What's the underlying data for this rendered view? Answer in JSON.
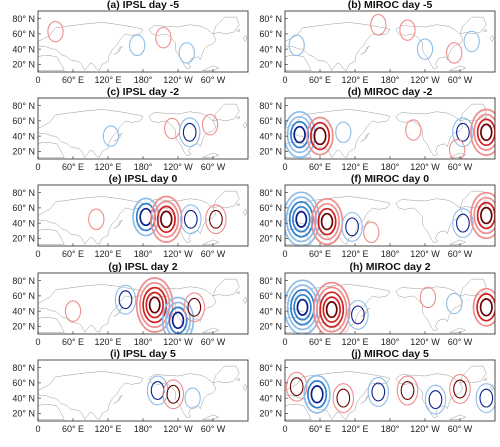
{
  "figure": {
    "colors": {
      "negative_light": "#8fbde8",
      "negative_mid": "#2f7fd1",
      "negative_dark": "#0a1e8a",
      "positive_light": "#f08c8c",
      "positive_mid": "#d11f1f",
      "positive_dark": "#6b0000",
      "coast": "#9a9a9a",
      "frame": "#222222"
    },
    "lat_ticks": [
      "20° N",
      "40° N",
      "60° N",
      "80° N"
    ],
    "lon_ticks": [
      "0",
      "60° E",
      "120° E",
      "180°",
      "120° W",
      "60° W"
    ]
  },
  "chart_data": [
    {
      "type": "contour_map",
      "title": "(a) IPSL day -5",
      "model": "IPSL",
      "day": -5,
      "lon_range": [
        0,
        360
      ],
      "lat_range": [
        10,
        90
      ],
      "anomalies": [
        {
          "lon": 30,
          "lat": 63,
          "sign": "positive",
          "strength": 1
        },
        {
          "lon": 215,
          "lat": 55,
          "sign": "positive",
          "strength": 1
        },
        {
          "lon": 170,
          "lat": 45,
          "sign": "negative",
          "strength": 1
        },
        {
          "lon": 255,
          "lat": 35,
          "sign": "negative",
          "strength": 1
        }
      ]
    },
    {
      "type": "contour_map",
      "title": "(b) MIROC day -5",
      "model": "MIROC",
      "day": -5,
      "lon_range": [
        0,
        360
      ],
      "lat_range": [
        10,
        90
      ],
      "anomalies": [
        {
          "lon": 20,
          "lat": 45,
          "sign": "negative",
          "strength": 1
        },
        {
          "lon": 160,
          "lat": 72,
          "sign": "positive",
          "strength": 1
        },
        {
          "lon": 210,
          "lat": 65,
          "sign": "positive",
          "strength": 1
        },
        {
          "lon": 240,
          "lat": 40,
          "sign": "negative",
          "strength": 1
        },
        {
          "lon": 290,
          "lat": 35,
          "sign": "positive",
          "strength": 1
        },
        {
          "lon": 320,
          "lat": 50,
          "sign": "negative",
          "strength": 1
        }
      ]
    },
    {
      "type": "contour_map",
      "title": "(c) IPSL day -2",
      "model": "IPSL",
      "day": -2,
      "lon_range": [
        0,
        360
      ],
      "lat_range": [
        10,
        90
      ],
      "anomalies": [
        {
          "lon": 125,
          "lat": 40,
          "sign": "negative",
          "strength": 1
        },
        {
          "lon": 230,
          "lat": 50,
          "sign": "positive",
          "strength": 1
        },
        {
          "lon": 260,
          "lat": 45,
          "sign": "negative",
          "strength": 2
        },
        {
          "lon": 295,
          "lat": 55,
          "sign": "positive",
          "strength": 1
        }
      ]
    },
    {
      "type": "contour_map",
      "title": "(d) MIROC day -2",
      "model": "MIROC",
      "day": -2,
      "lon_range": [
        0,
        360
      ],
      "lat_range": [
        10,
        90
      ],
      "anomalies": [
        {
          "lon": 25,
          "lat": 42,
          "sign": "negative",
          "strength": 4
        },
        {
          "lon": 60,
          "lat": 40,
          "sign": "positive",
          "strength": 3
        },
        {
          "lon": 100,
          "lat": 45,
          "sign": "negative",
          "strength": 1
        },
        {
          "lon": 220,
          "lat": 48,
          "sign": "positive",
          "strength": 1
        },
        {
          "lon": 305,
          "lat": 45,
          "sign": "negative",
          "strength": 2
        },
        {
          "lon": 345,
          "lat": 45,
          "sign": "positive",
          "strength": 4
        },
        {
          "lon": 295,
          "lat": 22,
          "sign": "positive",
          "strength": 1
        }
      ]
    },
    {
      "type": "contour_map",
      "title": "(e) IPSL day 0",
      "model": "IPSL",
      "day": 0,
      "lon_range": [
        0,
        360
      ],
      "lat_range": [
        10,
        90
      ],
      "anomalies": [
        {
          "lon": 100,
          "lat": 45,
          "sign": "positive",
          "strength": 1
        },
        {
          "lon": 185,
          "lat": 48,
          "sign": "negative",
          "strength": 3
        },
        {
          "lon": 220,
          "lat": 45,
          "sign": "positive",
          "strength": 4
        },
        {
          "lon": 262,
          "lat": 45,
          "sign": "negative",
          "strength": 2
        },
        {
          "lon": 305,
          "lat": 45,
          "sign": "positive",
          "strength": 2
        }
      ]
    },
    {
      "type": "contour_map",
      "title": "(f) MIROC day 0",
      "model": "MIROC",
      "day": 0,
      "lon_range": [
        0,
        360
      ],
      "lat_range": [
        10,
        90
      ],
      "anomalies": [
        {
          "lon": 28,
          "lat": 45,
          "sign": "negative",
          "strength": 5
        },
        {
          "lon": 72,
          "lat": 42,
          "sign": "positive",
          "strength": 4
        },
        {
          "lon": 115,
          "lat": 35,
          "sign": "negative",
          "strength": 2
        },
        {
          "lon": 148,
          "lat": 28,
          "sign": "positive",
          "strength": 1
        },
        {
          "lon": 305,
          "lat": 40,
          "sign": "negative",
          "strength": 2
        },
        {
          "lon": 345,
          "lat": 50,
          "sign": "positive",
          "strength": 4
        }
      ]
    },
    {
      "type": "contour_map",
      "title": "(g) IPSL day 2",
      "model": "IPSL",
      "day": 2,
      "lon_range": [
        0,
        360
      ],
      "lat_range": [
        10,
        90
      ],
      "anomalies": [
        {
          "lon": 150,
          "lat": 55,
          "sign": "negative",
          "strength": 2
        },
        {
          "lon": 200,
          "lat": 48,
          "sign": "positive",
          "strength": 5
        },
        {
          "lon": 240,
          "lat": 28,
          "sign": "negative",
          "strength": 4
        },
        {
          "lon": 268,
          "lat": 45,
          "sign": "positive",
          "strength": 2
        },
        {
          "lon": 60,
          "lat": 40,
          "sign": "positive",
          "strength": 1
        }
      ]
    },
    {
      "type": "contour_map",
      "title": "(h) MIROC day 2",
      "model": "MIROC",
      "day": 2,
      "lon_range": [
        0,
        360
      ],
      "lat_range": [
        10,
        90
      ],
      "anomalies": [
        {
          "lon": 30,
          "lat": 45,
          "sign": "negative",
          "strength": 5
        },
        {
          "lon": 80,
          "lat": 42,
          "sign": "positive",
          "strength": 5
        },
        {
          "lon": 125,
          "lat": 35,
          "sign": "negative",
          "strength": 2
        },
        {
          "lon": 245,
          "lat": 58,
          "sign": "positive",
          "strength": 1
        },
        {
          "lon": 290,
          "lat": 50,
          "sign": "negative",
          "strength": 1
        },
        {
          "lon": 345,
          "lat": 45,
          "sign": "positive",
          "strength": 3
        }
      ]
    },
    {
      "type": "contour_map",
      "title": "(i) IPSL day 5",
      "model": "IPSL",
      "day": 5,
      "lon_range": [
        0,
        360
      ],
      "lat_range": [
        10,
        90
      ],
      "anomalies": [
        {
          "lon": 205,
          "lat": 50,
          "sign": "negative",
          "strength": 2
        },
        {
          "lon": 232,
          "lat": 45,
          "sign": "positive",
          "strength": 2
        },
        {
          "lon": 265,
          "lat": 40,
          "sign": "negative",
          "strength": 1
        }
      ]
    },
    {
      "type": "contour_map",
      "title": "(j) MIROC day 5",
      "model": "MIROC",
      "day": 5,
      "lon_range": [
        0,
        360
      ],
      "lat_range": [
        10,
        90
      ],
      "anomalies": [
        {
          "lon": 20,
          "lat": 55,
          "sign": "positive",
          "strength": 2
        },
        {
          "lon": 55,
          "lat": 45,
          "sign": "negative",
          "strength": 3
        },
        {
          "lon": 100,
          "lat": 40,
          "sign": "positive",
          "strength": 2
        },
        {
          "lon": 160,
          "lat": 48,
          "sign": "negative",
          "strength": 2
        },
        {
          "lon": 210,
          "lat": 50,
          "sign": "positive",
          "strength": 2
        },
        {
          "lon": 258,
          "lat": 38,
          "sign": "negative",
          "strength": 2
        },
        {
          "lon": 300,
          "lat": 52,
          "sign": "positive",
          "strength": 2
        },
        {
          "lon": 345,
          "lat": 40,
          "sign": "negative",
          "strength": 2
        }
      ]
    }
  ]
}
